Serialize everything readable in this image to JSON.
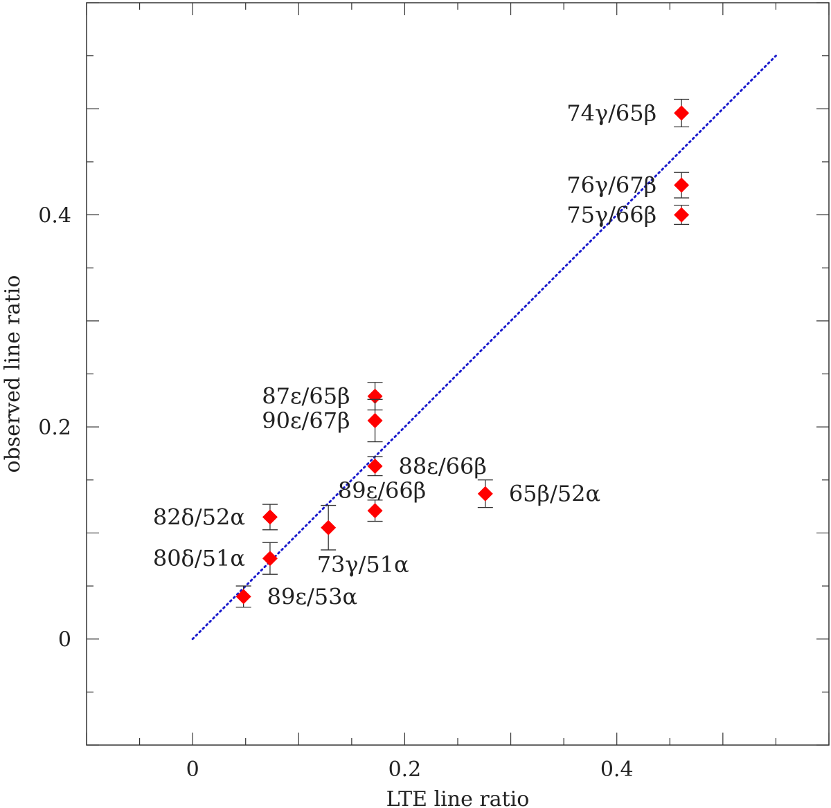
{
  "chart_data": {
    "type": "scatter",
    "title": "",
    "xlabel": "LTE line ratio",
    "ylabel": "observed line ratio",
    "xlim": [
      -0.1,
      0.6
    ],
    "ylim": [
      -0.1,
      0.6
    ],
    "x_ticks": [
      {
        "value": 0,
        "label": "0"
      },
      {
        "value": 0.2,
        "label": "0.2"
      },
      {
        "value": 0.4,
        "label": "0.4"
      }
    ],
    "y_ticks": [
      {
        "value": 0,
        "label": "0"
      },
      {
        "value": 0.2,
        "label": "0.2"
      },
      {
        "value": 0.4,
        "label": "0.4"
      }
    ],
    "reference_line": {
      "label": "",
      "x": [
        0,
        0.55
      ],
      "y": [
        0,
        0.55
      ],
      "color": "#1a1acc",
      "style": "dotted"
    },
    "marker_color": "#ff0000",
    "points": [
      {
        "label": "74γ/65β",
        "x": 0.461,
        "y": 0.496,
        "err": 0.013,
        "label_side": "left"
      },
      {
        "label": "76γ/67β",
        "x": 0.461,
        "y": 0.428,
        "err": 0.012,
        "label_side": "left"
      },
      {
        "label": "75γ/66β",
        "x": 0.461,
        "y": 0.4,
        "err": 0.009,
        "label_side": "left"
      },
      {
        "label": "87ε/65β",
        "x": 0.172,
        "y": 0.229,
        "err": 0.013,
        "label_side": "left"
      },
      {
        "label": "90ε/67β",
        "x": 0.172,
        "y": 0.206,
        "err": 0.02,
        "label_side": "left"
      },
      {
        "label": "88ε/66β",
        "x": 0.172,
        "y": 0.163,
        "err": 0.009,
        "label_side": "right"
      },
      {
        "label": "89ε/66β",
        "x": 0.172,
        "y": 0.121,
        "err": 0.01,
        "label_side": "above-left"
      },
      {
        "label": "65β/52α",
        "x": 0.276,
        "y": 0.137,
        "err": 0.013,
        "label_side": "right"
      },
      {
        "label": "82δ/52α",
        "x": 0.073,
        "y": 0.115,
        "err": 0.012,
        "label_side": "left"
      },
      {
        "label": "73γ/51α",
        "x": 0.128,
        "y": 0.105,
        "err": 0.021,
        "label_side": "below"
      },
      {
        "label": "80δ/51α",
        "x": 0.073,
        "y": 0.076,
        "err": 0.015,
        "label_side": "left"
      },
      {
        "label": "89ε/53α",
        "x": 0.048,
        "y": 0.04,
        "err": 0.01,
        "label_side": "right"
      }
    ]
  }
}
